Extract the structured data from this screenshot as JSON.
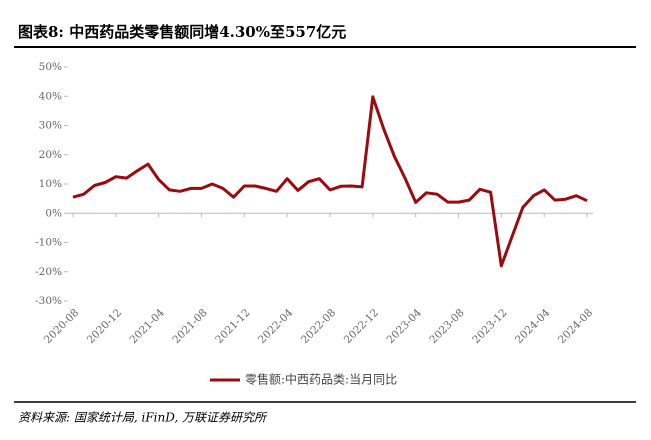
{
  "chart_data": {
    "type": "line",
    "title": "图表8:  中西药品类零售额同增4.30%至557亿元",
    "source": "资料来源: 国家统计局, iFinD, 万联证券研究所",
    "categories": [
      "2020-08",
      null,
      null,
      null,
      "2020-12",
      null,
      null,
      null,
      "2021-04",
      null,
      null,
      null,
      "2021-08",
      null,
      null,
      null,
      "2021-12",
      null,
      null,
      null,
      "2022-04",
      null,
      null,
      null,
      "2022-08",
      null,
      null,
      null,
      "2022-12",
      null,
      null,
      null,
      "2023-04",
      null,
      null,
      null,
      "2023-08",
      null,
      null,
      null,
      "2023-12",
      null,
      null,
      null,
      "2024-04",
      null,
      null,
      null,
      "2024-08"
    ],
    "series": [
      {
        "name": "零售额:中西药品类:当月同比",
        "color": "#9b0a0e",
        "values": [
          5.5,
          6.5,
          9.5,
          10.5,
          12.5,
          12,
          14.5,
          16.8,
          11.5,
          8,
          7.5,
          8.5,
          8.5,
          10,
          8.5,
          5.5,
          9.3,
          9.3,
          8.5,
          7.5,
          11.8,
          7.8,
          10.8,
          11.8,
          8,
          9.2,
          9.3,
          9,
          39.8,
          29,
          19.5,
          12,
          3.7,
          7,
          6.5,
          3.8,
          3.8,
          4.5,
          8.2,
          7.2,
          -18,
          -8,
          2,
          6,
          8,
          4.5,
          4.8,
          6,
          4.3
        ]
      }
    ],
    "ylim": [
      -30,
      50
    ],
    "yticks": [
      {
        "value": -30,
        "label": "-30%"
      },
      {
        "value": -20,
        "label": "-20%"
      },
      {
        "value": -10,
        "label": "-10%"
      },
      {
        "value": 0,
        "label": "0%"
      },
      {
        "value": 10,
        "label": "10%"
      },
      {
        "value": 20,
        "label": "20%"
      },
      {
        "value": 30,
        "label": "30%"
      },
      {
        "value": 40,
        "label": "40%"
      },
      {
        "value": 50,
        "label": "50%"
      }
    ],
    "legend": "bottom"
  }
}
